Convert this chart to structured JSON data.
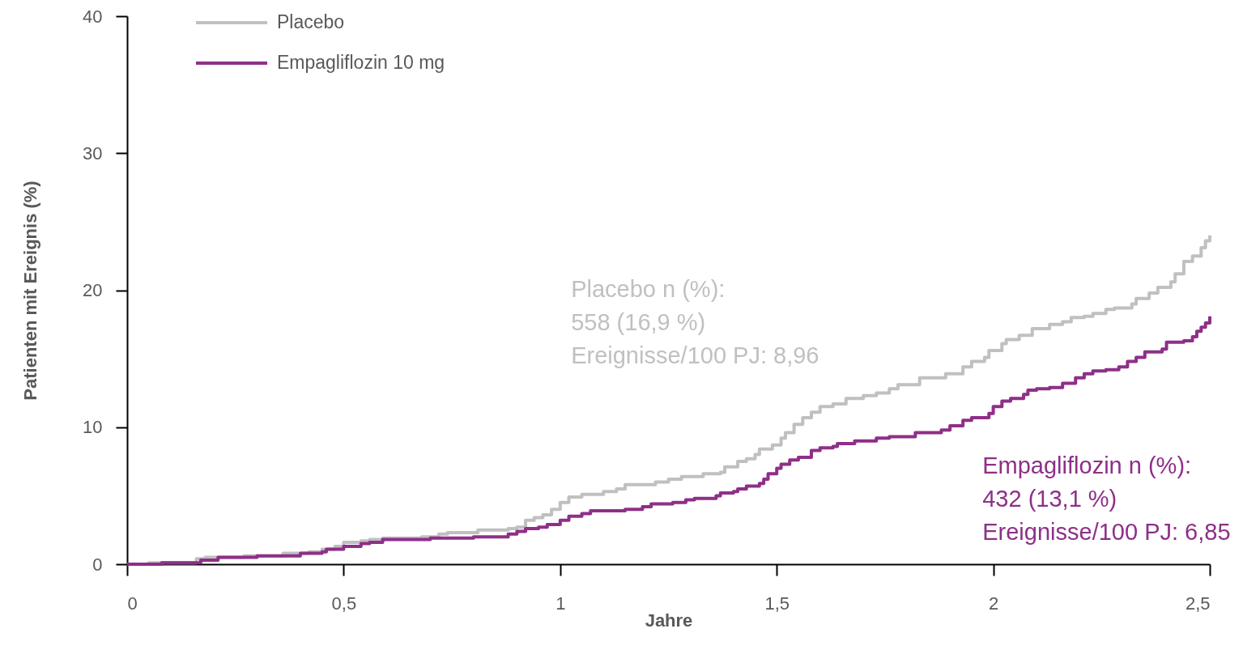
{
  "chart_data": {
    "type": "step",
    "xlabel": "Jahre",
    "ylabel": "Patienten mit Ereignis (%)",
    "series": [
      {
        "name": "Placebo",
        "color": "#c0c0c0",
        "x": [
          0,
          0.05,
          0.16,
          0.18,
          0.27,
          0.36,
          0.42,
          0.45,
          0.48,
          0.5,
          0.54,
          0.56,
          0.59,
          0.68,
          0.72,
          0.74,
          0.81,
          0.88,
          0.9,
          0.92,
          0.94,
          0.96,
          0.98,
          1.0,
          1.02,
          1.05,
          1.1,
          1.13,
          1.15,
          1.22,
          1.25,
          1.28,
          1.33,
          1.37,
          1.38,
          1.41,
          1.43,
          1.45,
          1.46,
          1.49,
          1.51,
          1.52,
          1.54,
          1.56,
          1.58,
          1.6,
          1.63,
          1.66,
          1.7,
          1.73,
          1.76,
          1.78,
          1.83,
          1.89,
          1.93,
          1.95,
          1.98,
          1.99,
          2.02,
          2.03,
          2.06,
          2.09,
          2.13,
          2.16,
          2.18,
          2.21,
          2.23,
          2.26,
          2.28,
          2.32,
          2.33,
          2.36,
          2.38,
          2.41,
          2.42,
          2.44,
          2.46,
          2.48,
          2.49,
          2.5
        ],
        "values": [
          0,
          0.1,
          0.4,
          0.5,
          0.6,
          0.8,
          0.9,
          1.1,
          1.3,
          1.6,
          1.7,
          1.8,
          1.9,
          2.0,
          2.2,
          2.3,
          2.5,
          2.6,
          2.7,
          3.2,
          3.4,
          3.6,
          4.0,
          4.5,
          4.9,
          5.1,
          5.3,
          5.5,
          5.8,
          6.0,
          6.2,
          6.4,
          6.6,
          6.7,
          7.1,
          7.5,
          7.7,
          8.0,
          8.4,
          8.7,
          9.2,
          9.6,
          10.2,
          10.7,
          11.1,
          11.5,
          11.7,
          12.1,
          12.3,
          12.5,
          12.8,
          13.1,
          13.6,
          13.9,
          14.4,
          14.8,
          15.1,
          15.6,
          16.1,
          16.4,
          16.7,
          17.2,
          17.5,
          17.7,
          18.0,
          18.1,
          18.3,
          18.6,
          18.7,
          19.0,
          19.4,
          19.8,
          20.2,
          20.6,
          21.2,
          22.1,
          22.5,
          23.1,
          23.6,
          24.0
        ]
      },
      {
        "name": "Empagliflozin 10 mg",
        "color": "#8e2f88",
        "x": [
          0,
          0.08,
          0.17,
          0.21,
          0.3,
          0.4,
          0.45,
          0.46,
          0.5,
          0.54,
          0.56,
          0.59,
          0.7,
          0.8,
          0.88,
          0.9,
          0.92,
          0.95,
          0.97,
          1.0,
          1.02,
          1.05,
          1.07,
          1.15,
          1.19,
          1.21,
          1.26,
          1.29,
          1.31,
          1.36,
          1.37,
          1.4,
          1.41,
          1.43,
          1.46,
          1.47,
          1.48,
          1.5,
          1.51,
          1.53,
          1.55,
          1.58,
          1.6,
          1.63,
          1.64,
          1.68,
          1.73,
          1.76,
          1.82,
          1.88,
          1.9,
          1.93,
          1.95,
          1.99,
          2.0,
          2.02,
          2.04,
          2.07,
          2.08,
          2.1,
          2.13,
          2.16,
          2.19,
          2.21,
          2.23,
          2.26,
          2.29,
          2.31,
          2.33,
          2.35,
          2.39,
          2.4,
          2.44,
          2.46,
          2.47,
          2.48,
          2.49,
          2.5
        ],
        "values": [
          0,
          0.1,
          0.3,
          0.5,
          0.6,
          0.8,
          0.9,
          1.1,
          1.3,
          1.5,
          1.6,
          1.8,
          1.9,
          2.0,
          2.2,
          2.4,
          2.6,
          2.7,
          2.9,
          3.2,
          3.5,
          3.7,
          3.9,
          4.0,
          4.2,
          4.4,
          4.5,
          4.7,
          4.8,
          5.0,
          5.2,
          5.3,
          5.5,
          5.7,
          5.9,
          6.2,
          6.6,
          7.0,
          7.3,
          7.6,
          7.8,
          8.3,
          8.5,
          8.6,
          8.8,
          9.0,
          9.2,
          9.3,
          9.6,
          9.8,
          10.1,
          10.5,
          10.7,
          11.0,
          11.5,
          11.9,
          12.1,
          12.4,
          12.7,
          12.8,
          12.9,
          13.2,
          13.6,
          13.9,
          14.1,
          14.2,
          14.4,
          14.8,
          15.1,
          15.5,
          15.7,
          16.2,
          16.3,
          16.6,
          17.0,
          17.3,
          17.6,
          18.1
        ]
      }
    ],
    "xlim": [
      0,
      2.5
    ],
    "xticks": [
      0,
      {
        "value": 0.5,
        "label": "0,5"
      },
      1,
      {
        "value": 1.5,
        "label": "1,5"
      },
      2,
      {
        "value": 2.5,
        "label": "2,5"
      }
    ],
    "ylim": [
      0,
      40
    ],
    "yticks": [
      0,
      10,
      20,
      30,
      40
    ],
    "grid": false,
    "legend": "top left",
    "annotations": [
      "Placebo n (%):\n558 (16,9 %)\nEreignisse/100 PJ: 8,96",
      "Empagliflozin n (%):\n432 (13,1 %)\nEreignisse/100 PJ: 6,85"
    ]
  }
}
